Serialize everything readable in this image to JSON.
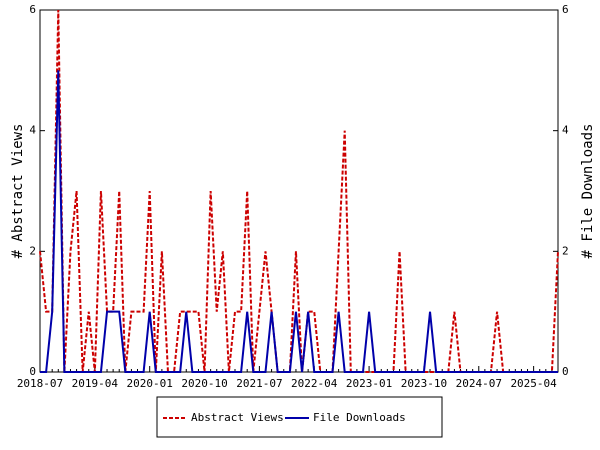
{
  "chart_data": {
    "type": "line",
    "categories": [
      "2018-07",
      null,
      null,
      null,
      null,
      null,
      null,
      null,
      null,
      "2019-04",
      null,
      null,
      null,
      null,
      null,
      null,
      null,
      null,
      "2020-01",
      null,
      null,
      null,
      null,
      null,
      null,
      null,
      null,
      "2020-10",
      null,
      null,
      null,
      null,
      null,
      null,
      null,
      null,
      "2021-07",
      null,
      null,
      null,
      null,
      null,
      null,
      null,
      null,
      "2022-04",
      null,
      null,
      null,
      null,
      null,
      null,
      null,
      null,
      "2023-01",
      null,
      null,
      null,
      null,
      null,
      null,
      null,
      null,
      "2023-10",
      null,
      null,
      null,
      null,
      null,
      null,
      null,
      null,
      "2024-07",
      null,
      null,
      null,
      null,
      null,
      null,
      null,
      null,
      "2025-04",
      null,
      null,
      null,
      null
    ],
    "y_label": "# Abstract Views",
    "y2_label": "# File Downloads",
    "ylim": [
      0,
      6
    ],
    "yticks": [
      0,
      2,
      4,
      6
    ],
    "y2lim": [
      0,
      6
    ],
    "y2ticks": [
      0,
      2,
      4,
      6
    ],
    "series": [
      {
        "name": "Abstract Views",
        "color": "#cc0000",
        "dash": true,
        "values": [
          2,
          1,
          1,
          6,
          0,
          2,
          3,
          0,
          1,
          0,
          3,
          1,
          1,
          3,
          0,
          1,
          1,
          1,
          3,
          0,
          2,
          0,
          0,
          1,
          1,
          1,
          1,
          0,
          3,
          1,
          2,
          0,
          1,
          1,
          3,
          0,
          1,
          2,
          1,
          0,
          0,
          0,
          2,
          0,
          1,
          1,
          0,
          0,
          0,
          2,
          4,
          0,
          0,
          0,
          0,
          0,
          0,
          0,
          0,
          2,
          0,
          0,
          0,
          0,
          0,
          0,
          0,
          0,
          1,
          0,
          0,
          0,
          0,
          0,
          0,
          1,
          0,
          0,
          0,
          0,
          0,
          0,
          0,
          0,
          0,
          2
        ]
      },
      {
        "name": "File Downloads",
        "color": "#0000aa",
        "axis": "y2",
        "values": [
          0,
          0,
          1,
          5,
          0,
          0,
          0,
          0,
          0,
          0,
          0,
          1,
          1,
          1,
          0,
          0,
          0,
          0,
          1,
          0,
          0,
          0,
          0,
          0,
          1,
          0,
          0,
          0,
          0,
          0,
          0,
          0,
          0,
          0,
          1,
          0,
          0,
          0,
          1,
          0,
          0,
          0,
          1,
          0,
          1,
          0,
          0,
          0,
          0,
          1,
          0,
          0,
          0,
          0,
          1,
          0,
          0,
          0,
          0,
          0,
          0,
          0,
          0,
          0,
          1,
          0,
          0,
          0,
          0,
          0,
          0,
          0,
          0,
          0,
          0,
          0,
          0,
          0,
          0,
          0,
          0,
          0,
          0,
          0,
          0,
          0
        ]
      }
    ]
  }
}
